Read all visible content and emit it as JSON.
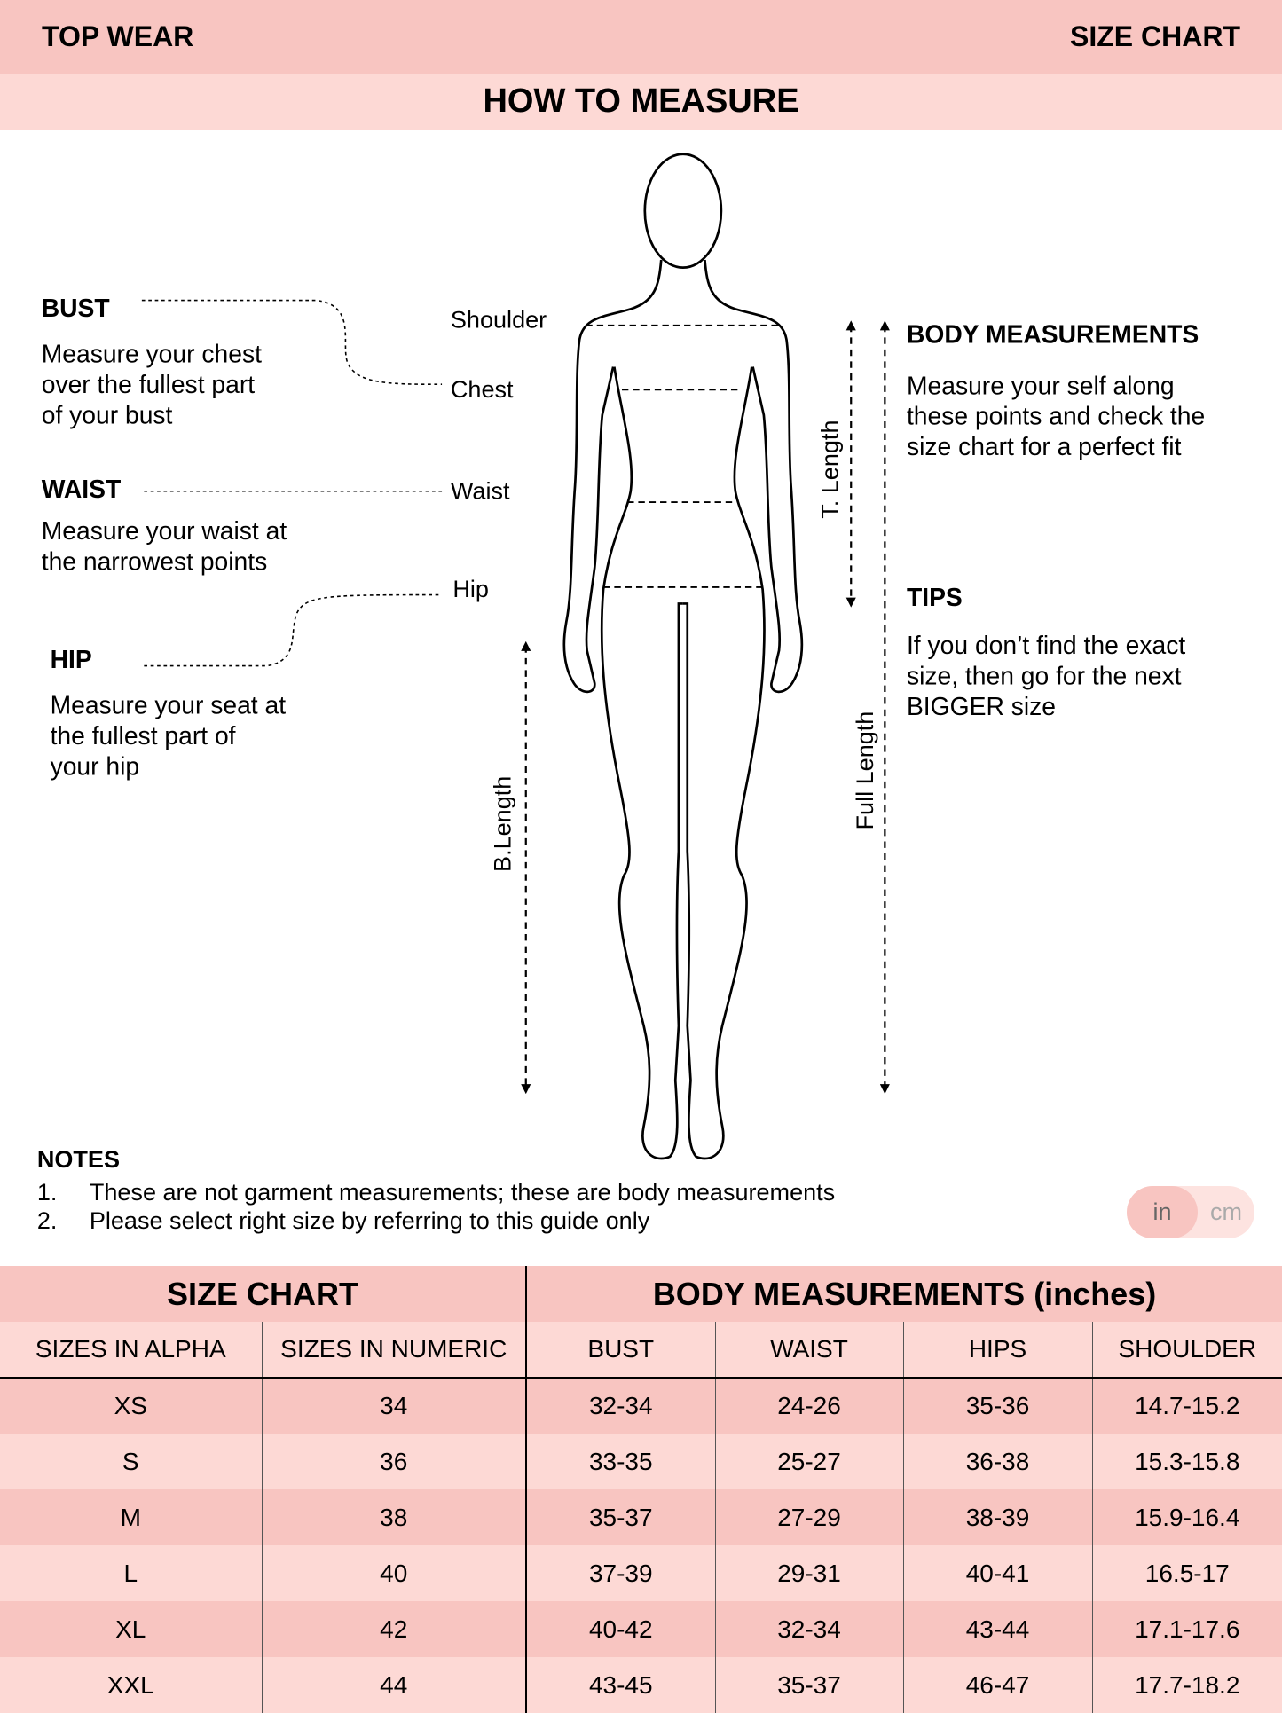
{
  "header": {
    "left": "TOP WEAR",
    "right": "SIZE CHART"
  },
  "subheader": "HOW TO MEASURE",
  "guide": {
    "bust": {
      "title": "BUST",
      "lines": [
        "Measure your chest",
        "over the fullest part",
        "of your bust"
      ]
    },
    "waist": {
      "title": "WAIST",
      "lines": [
        "Measure your waist at",
        "the narrowest points"
      ]
    },
    "hip": {
      "title": "HIP",
      "lines": [
        "Measure your seat at",
        "the fullest part of",
        "your hip"
      ]
    },
    "labels": {
      "shoulder": "Shoulder",
      "chest": "Chest",
      "waist": "Waist",
      "hip": "Hip",
      "b_length": "B.Length",
      "t_length": "T. Length",
      "full_length": "Full Length"
    },
    "body": {
      "title": "BODY MEASUREMENTS",
      "lines": [
        "Measure your self along",
        "these points and check the",
        "size chart for a perfect fit"
      ]
    },
    "tips": {
      "title": "TIPS",
      "lines": [
        "If you don’t find the exact",
        "size, then go for the next",
        "BIGGER size"
      ]
    }
  },
  "notes": {
    "title": "NOTES",
    "items": [
      {
        "num": "1.",
        "text": "These are not garment measurements; these are body measurements"
      },
      {
        "num": "2.",
        "text": "Please select right size by referring to this guide only"
      }
    ]
  },
  "unit_toggle": {
    "options": [
      "in",
      "cm"
    ],
    "selected": "in"
  },
  "table": {
    "group_headers": [
      "SIZE CHART",
      "BODY MEASUREMENTS (inches)"
    ],
    "columns": [
      "SIZES IN ALPHA",
      "SIZES IN NUMERIC",
      "BUST",
      "WAIST",
      "HIPS",
      "SHOULDER"
    ],
    "rows": [
      [
        "XS",
        "34",
        "32-34",
        "24-26",
        "35-36",
        "14.7-15.2"
      ],
      [
        "S",
        "36",
        "33-35",
        "25-27",
        "36-38",
        "15.3-15.8"
      ],
      [
        "M",
        "38",
        "35-37",
        "27-29",
        "38-39",
        "15.9-16.4"
      ],
      [
        "L",
        "40",
        "37-39",
        "29-31",
        "40-41",
        "16.5-17"
      ],
      [
        "XL",
        "42",
        "40-42",
        "32-34",
        "43-44",
        "17.1-17.6"
      ],
      [
        "XXL",
        "44",
        "43-45",
        "35-37",
        "46-47",
        "17.7-18.2"
      ]
    ]
  },
  "colors": {
    "header": "#f8c5c1",
    "light": "#fdd9d5"
  }
}
